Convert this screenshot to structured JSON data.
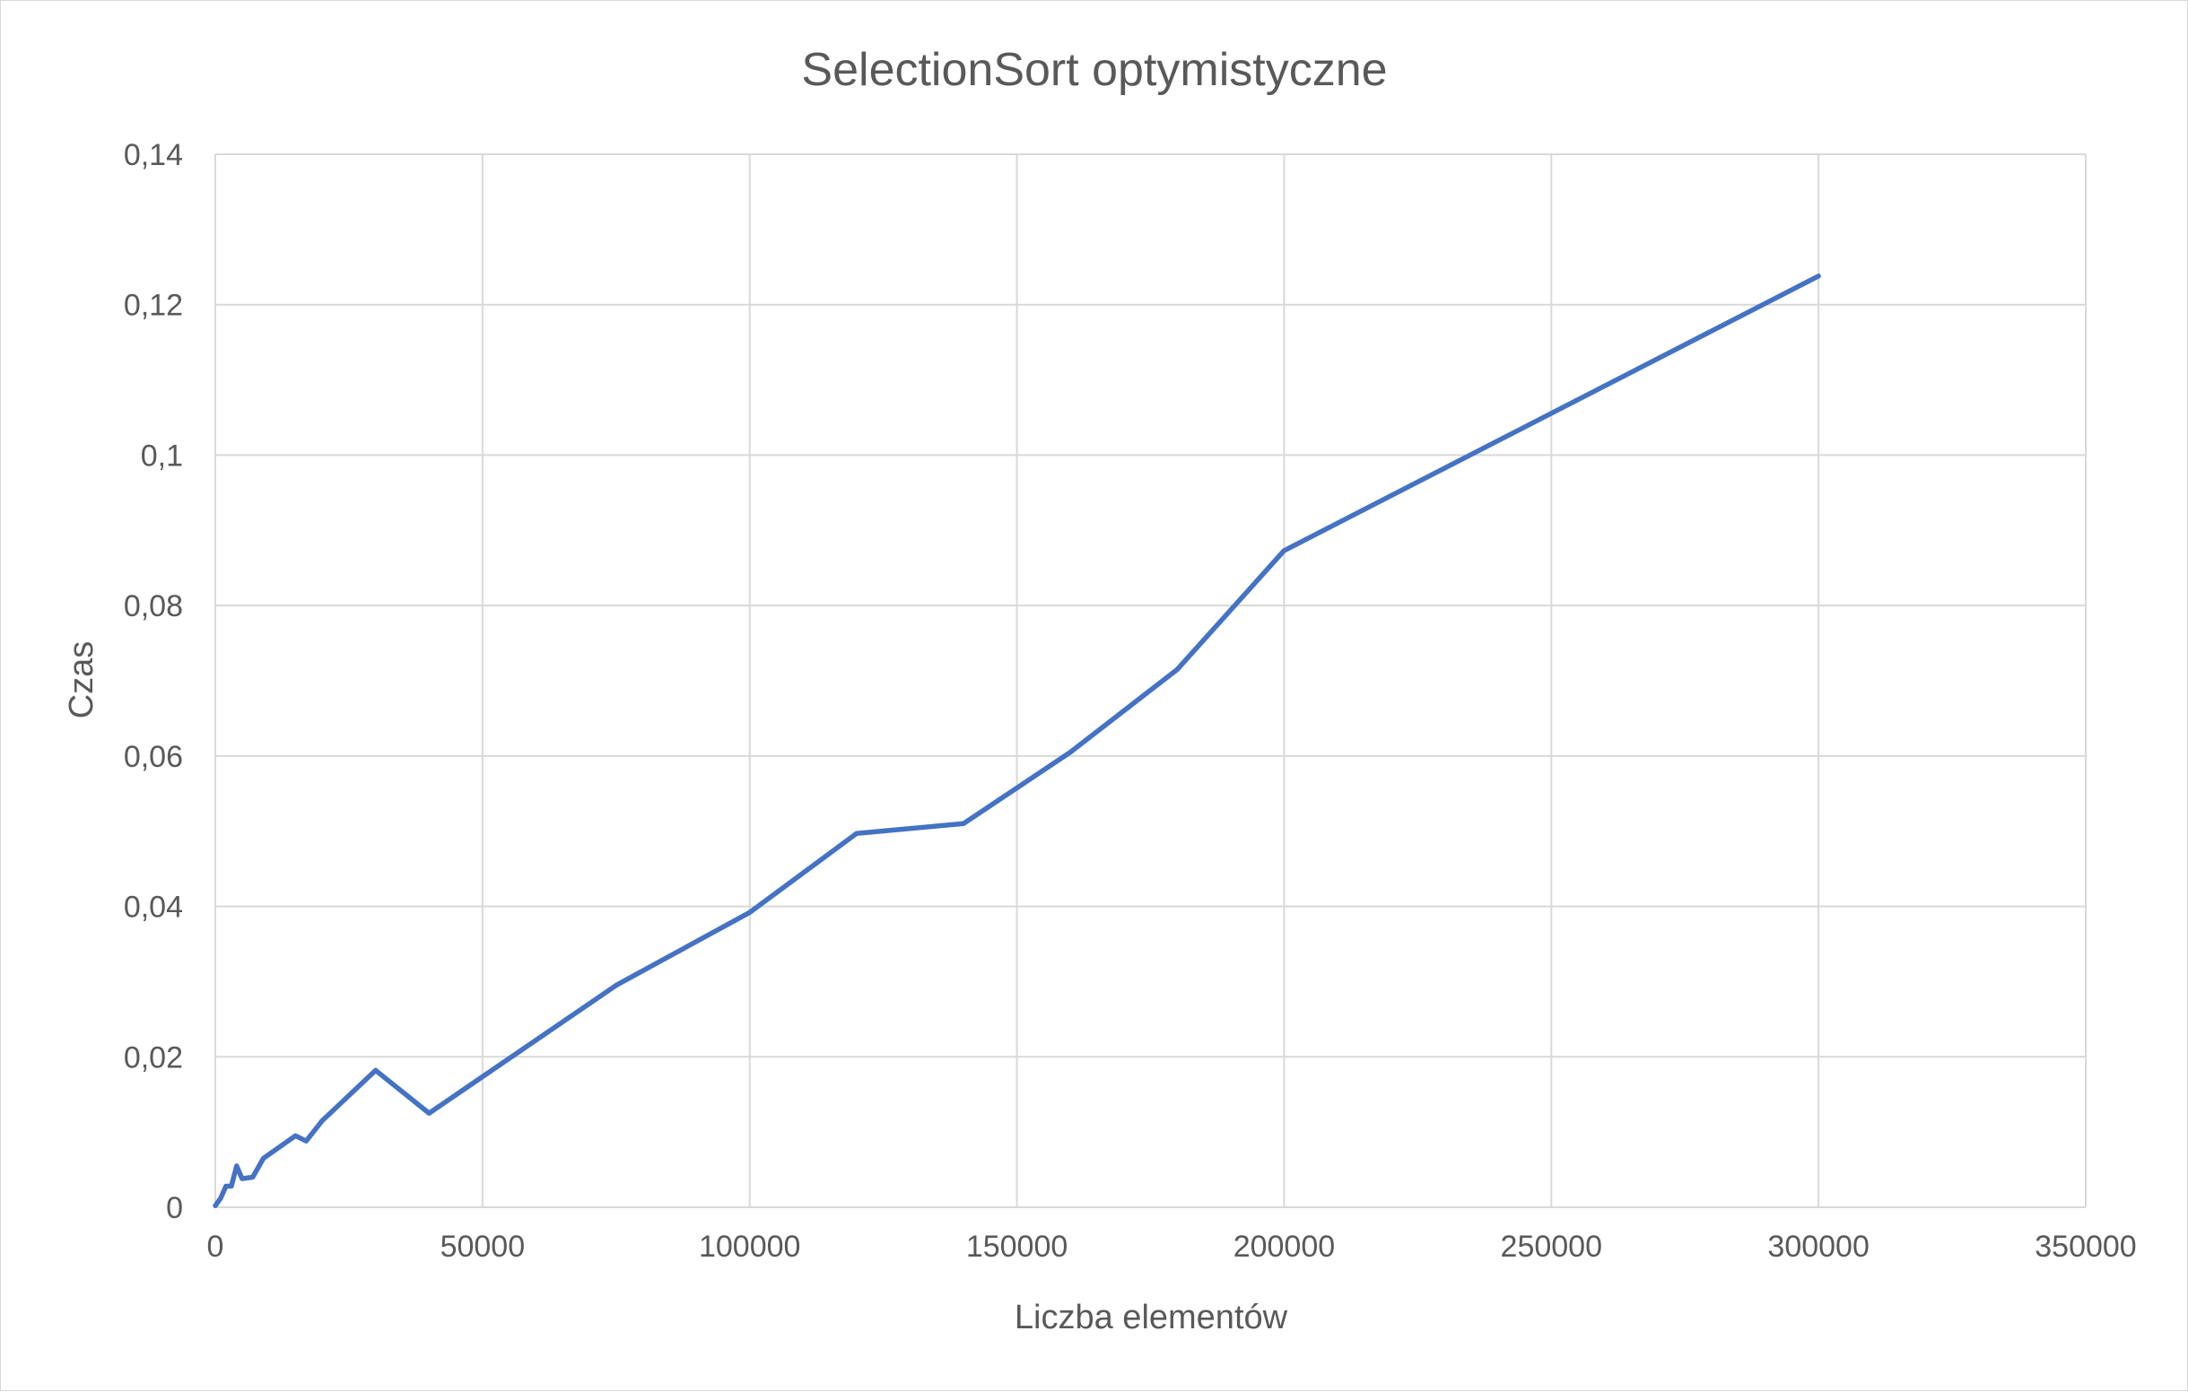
{
  "chart_data": {
    "type": "line",
    "title": "SelectionSort optymistyczne",
    "xlabel": "Liczba elementów",
    "ylabel": "Czas",
    "xlim": [
      0,
      350000
    ],
    "ylim": [
      0,
      0.14
    ],
    "x_ticks": [
      "0",
      "50000",
      "100000",
      "150000",
      "200000",
      "250000",
      "300000",
      "350000"
    ],
    "y_ticks": [
      "0",
      "0,02",
      "0,04",
      "0,06",
      "0,08",
      "0,1",
      "0,12",
      "0,14"
    ],
    "grid": true,
    "legend": "none",
    "series": [
      {
        "color": "#4472c4",
        "x": [
          0,
          1000,
          2000,
          3000,
          4000,
          5000,
          7000,
          9000,
          12000,
          15000,
          17000,
          20000,
          30000,
          40000,
          75000,
          100000,
          120000,
          140000,
          160000,
          180000,
          200000,
          300000
        ],
        "y": [
          0.0002,
          0.0012,
          0.0028,
          0.0028,
          0.0055,
          0.0038,
          0.004,
          0.0065,
          0.008,
          0.0095,
          0.0088,
          0.0115,
          0.0182,
          0.0125,
          0.0295,
          0.0392,
          0.0497,
          0.051,
          0.0605,
          0.0715,
          0.0873,
          0.1238
        ]
      }
    ]
  }
}
